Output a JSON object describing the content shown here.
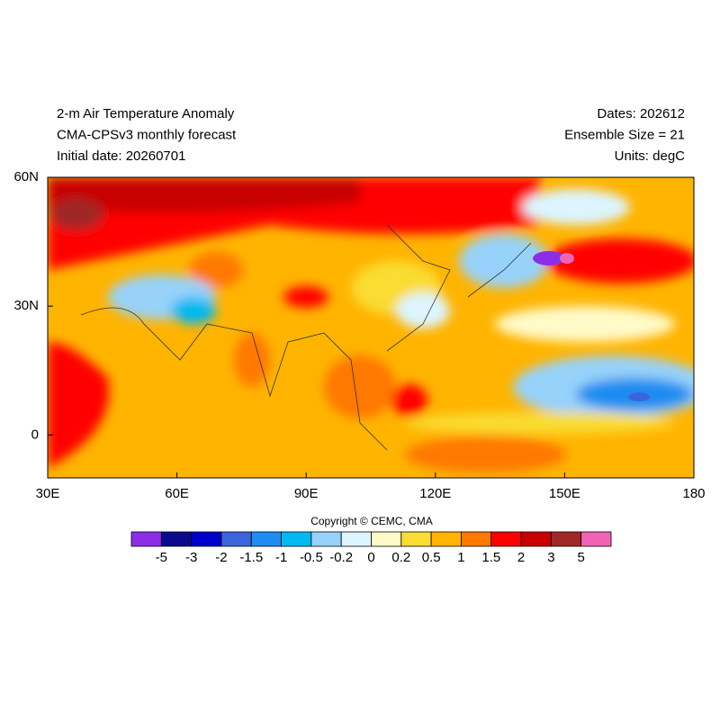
{
  "header": {
    "left": [
      "2-m Air Temperature Anomaly",
      "CMA-CPSv3 monthly forecast",
      "Initial date: 20260701"
    ],
    "right": [
      "Dates: 202612",
      "Ensemble Size = 21",
      "Units: degC"
    ]
  },
  "map": {
    "lon_range": [
      30,
      180
    ],
    "lat_range": [
      -10,
      60
    ],
    "lon_ticks": [
      {
        "value": 30,
        "label": "30E"
      },
      {
        "value": 60,
        "label": "60E"
      },
      {
        "value": 90,
        "label": "90E"
      },
      {
        "value": 120,
        "label": "120E"
      },
      {
        "value": 150,
        "label": "150E"
      },
      {
        "value": 180,
        "label": "180"
      }
    ],
    "lat_ticks": [
      {
        "value": 60,
        "label": "60N"
      },
      {
        "value": 30,
        "label": "30N"
      },
      {
        "value": 0,
        "label": "0"
      }
    ]
  },
  "copyright": "Copyright © CEMC, CMA",
  "colorbar": {
    "levels": [
      -5,
      -3,
      -2,
      -1.5,
      -1,
      -0.5,
      -0.2,
      0,
      0.2,
      0.5,
      1,
      1.5,
      2,
      3,
      5
    ],
    "colors": [
      "#8c2ee8",
      "#0a0a8c",
      "#0000cd",
      "#3c64dc",
      "#1e8cf0",
      "#00b9f0",
      "#96d2fa",
      "#dcf5ff",
      "#fffac8",
      "#fadc32",
      "#ffb400",
      "#ff7800",
      "#ff0000",
      "#c80000",
      "#a02828",
      "#f064b4"
    ]
  }
}
